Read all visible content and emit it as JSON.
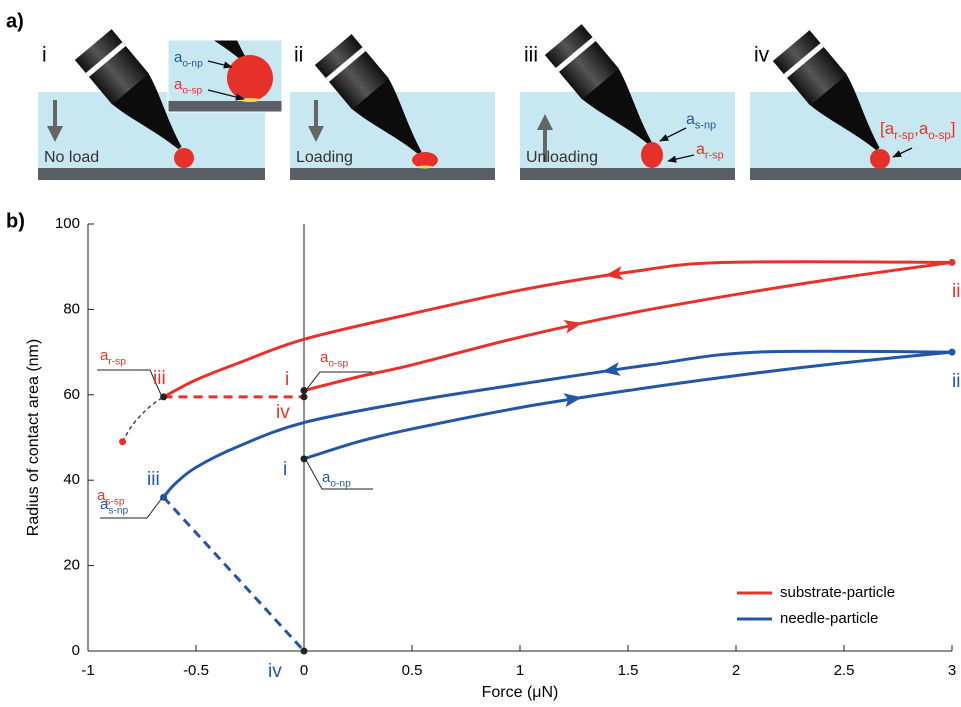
{
  "panel_a": {
    "label": "a)",
    "panels": [
      {
        "numeral": "i",
        "caption": "No load"
      },
      {
        "numeral": "ii",
        "caption": "Loading"
      },
      {
        "numeral": "iii",
        "caption": "Unloading"
      },
      {
        "numeral": "iv"
      }
    ],
    "annotations": [
      {
        "color": "#2456a6",
        "parts": [
          {
            "text": "a",
            "subscript": "o-np"
          }
        ]
      },
      {
        "color": "#e8312a",
        "parts": [
          {
            "text": "a",
            "subscript": "o-sp"
          }
        ]
      },
      {
        "color": "#2456a6",
        "parts": [
          {
            "text": "a",
            "subscript": "s-np"
          }
        ]
      },
      {
        "color": "#e8312a",
        "parts": [
          {
            "text": "a",
            "subscript": "r-sp"
          }
        ]
      },
      {
        "color": "#e8312a",
        "parts": [
          {
            "text": "["
          },
          {
            "text": "a",
            "subscript": "r-sp"
          },
          {
            "text": ","
          },
          {
            "text": "a",
            "subscript": "o-sp"
          },
          {
            "text": "]"
          }
        ]
      }
    ]
  },
  "chart_data": {
    "type": "line",
    "panel_label": "b)",
    "x_label": "Force (μN)",
    "y_label": "Radius of contact area (nm)",
    "xlim": [
      -1,
      3
    ],
    "ylim": [
      0,
      100
    ],
    "xticks": [
      -1,
      -0.5,
      0,
      0.5,
      1,
      1.5,
      2,
      2.5,
      3
    ],
    "yticks": [
      0,
      20,
      40,
      60,
      80,
      100
    ],
    "legend": "lower right",
    "series": [
      {
        "name": "substrate-particle",
        "color": "#e8312a",
        "curves": [
          {
            "style": "solid",
            "arrow": true,
            "x": [
              0,
              0.25,
              0.5,
              1,
              1.5,
              2,
              2.5,
              3
            ],
            "y": [
              61,
              64.2,
              67,
              73.5,
              79,
              83.5,
              87.5,
              91
            ]
          },
          {
            "style": "solid",
            "arrow": true,
            "x": [
              3,
              1.95,
              1.5,
              1,
              0.5,
              0,
              -0.3,
              -0.5,
              -0.65
            ],
            "y": [
              91,
              91,
              88.7,
              84.5,
              79,
              73,
              67.5,
              63.5,
              59.5
            ]
          },
          {
            "style": "dashed",
            "x": [
              -0.65,
              0
            ],
            "y": [
              59.5,
              59.5
            ]
          },
          {
            "style": "dotted",
            "color": "#333333",
            "x": [
              -0.84,
              -0.8,
              -0.75,
              -0.7,
              -0.65
            ],
            "y": [
              49,
              52.5,
              55.5,
              57.8,
              59.5
            ]
          }
        ],
        "points": [
          {
            "x": 0,
            "y": 61,
            "color": "#222222"
          },
          {
            "x": 0,
            "y": 59.5,
            "color": "#222222"
          },
          {
            "x": -0.65,
            "y": 59.5,
            "color": "#222222"
          },
          {
            "x": -0.84,
            "y": 49,
            "color": "#e8312a"
          },
          {
            "x": 3,
            "y": 91,
            "color": "#e8312a"
          }
        ]
      },
      {
        "name": "needle-particle",
        "color": "#2456a6",
        "curves": [
          {
            "style": "solid",
            "arrow": true,
            "x": [
              0,
              0.25,
              0.5,
              1,
              1.5,
              2,
              2.5,
              3
            ],
            "y": [
              45,
              49,
              52,
              57,
              61,
              64.5,
              67.5,
              70
            ]
          },
          {
            "style": "solid",
            "arrow": true,
            "x": [
              3,
              2.1,
              1.6,
              1,
              0.5,
              0,
              -0.3,
              -0.5,
              -0.6,
              -0.65
            ],
            "y": [
              70,
              70,
              67,
              62.5,
              58.5,
              53.5,
              48,
              43,
              39,
              36
            ]
          },
          {
            "style": "dashed",
            "x": [
              -0.65,
              0
            ],
            "y": [
              36,
              0
            ]
          }
        ],
        "points": [
          {
            "x": 0,
            "y": 45,
            "color": "#222222"
          },
          {
            "x": 0,
            "y": 0,
            "color": "#222222"
          },
          {
            "x": -0.65,
            "y": 36,
            "color": "#2456a6"
          },
          {
            "x": 3,
            "y": 70,
            "color": "#2456a6"
          }
        ]
      }
    ],
    "annotations": [
      {
        "color": "#e8312a",
        "parts": [
          {
            "text": "a",
            "subscript": "r-sp"
          }
        ]
      },
      {
        "color": "#e8312a",
        "parts": [
          {
            "text": "iii"
          }
        ]
      },
      {
        "color": "#e8312a",
        "parts": [
          {
            "text": "a",
            "subscript": "s-sp"
          }
        ]
      },
      {
        "color": "#2456a6",
        "parts": [
          {
            "text": "iii"
          }
        ]
      },
      {
        "color": "#2456a6",
        "parts": [
          {
            "text": "a",
            "subscript": "s-np"
          }
        ]
      },
      {
        "color": "#e8312a",
        "parts": [
          {
            "text": "i"
          }
        ]
      },
      {
        "color": "#e8312a",
        "parts": [
          {
            "text": "a",
            "subscript": "o-sp"
          }
        ]
      },
      {
        "color": "#e8312a",
        "parts": [
          {
            "text": "iv"
          }
        ]
      },
      {
        "color": "#2456a6",
        "parts": [
          {
            "text": "i"
          }
        ]
      },
      {
        "color": "#2456a6",
        "parts": [
          {
            "text": "a",
            "subscript": "o-np"
          }
        ]
      },
      {
        "color": "#2456a6",
        "parts": [
          {
            "text": "iv"
          }
        ]
      },
      {
        "color": "#e8312a",
        "parts": [
          {
            "text": "ii"
          }
        ]
      },
      {
        "color": "#2456a6",
        "parts": [
          {
            "text": "ii"
          }
        ]
      }
    ]
  }
}
